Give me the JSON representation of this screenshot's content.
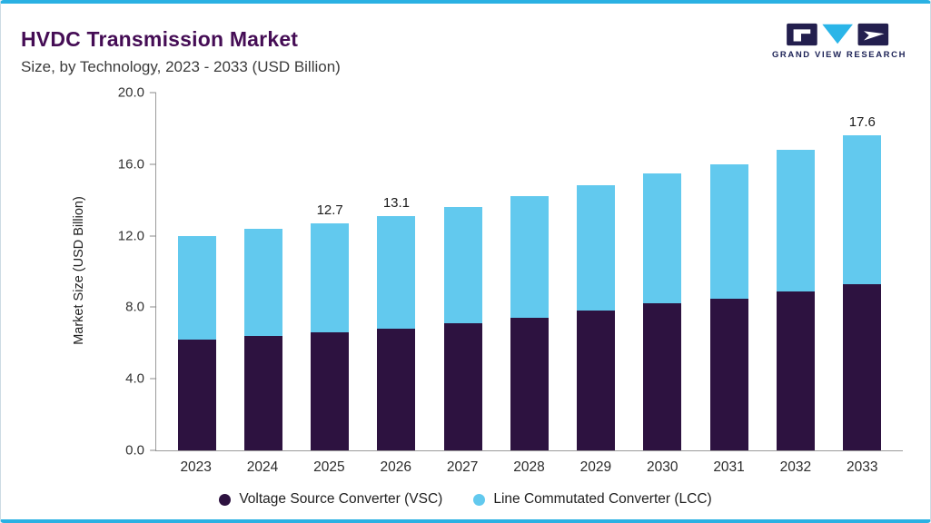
{
  "header": {
    "title": "HVDC Transmission Market",
    "subtitle": "Size, by Technology, 2023 - 2033 (USD Billion)"
  },
  "logo": {
    "text": "GRAND VIEW RESEARCH"
  },
  "colors": {
    "vsc": "#2d1240",
    "lcc": "#62c9ee",
    "accent_line": "#2ab1e3",
    "title_purple": "#450d55",
    "logo_navy": "#231f4e",
    "logo_cyan": "#2ab5e8"
  },
  "chart_data": {
    "type": "bar",
    "stacked": true,
    "title": "HVDC Transmission Market Size, by Technology, 2023 - 2033 (USD Billion)",
    "ylabel": "Market Size (USD Billion)",
    "xlabel": "",
    "ylim": [
      0,
      20
    ],
    "yticks": [
      "0.0",
      "4.0",
      "8.0",
      "12.0",
      "16.0",
      "20.0"
    ],
    "grid": false,
    "legend_position": "bottom",
    "categories": [
      "2023",
      "2024",
      "2025",
      "2026",
      "2027",
      "2028",
      "2029",
      "2030",
      "2031",
      "2032",
      "2033"
    ],
    "series": [
      {
        "name": "Voltage Source Converter (VSC)",
        "color": "#2d1240",
        "values": [
          6.2,
          6.4,
          6.6,
          6.8,
          7.1,
          7.4,
          7.8,
          8.2,
          8.5,
          8.9,
          9.3
        ]
      },
      {
        "name": "Line Commutated Converter (LCC)",
        "color": "#62c9ee",
        "values": [
          5.8,
          6.0,
          6.1,
          6.3,
          6.5,
          6.8,
          7.0,
          7.3,
          7.5,
          7.9,
          8.3
        ]
      }
    ],
    "totals": [
      12.0,
      12.4,
      12.7,
      13.1,
      13.6,
      14.2,
      14.8,
      15.5,
      16.0,
      16.8,
      17.6
    ],
    "total_labels": [
      "",
      "",
      "12.7",
      "13.1",
      "",
      "",
      "",
      "",
      "",
      "",
      "17.6"
    ]
  }
}
